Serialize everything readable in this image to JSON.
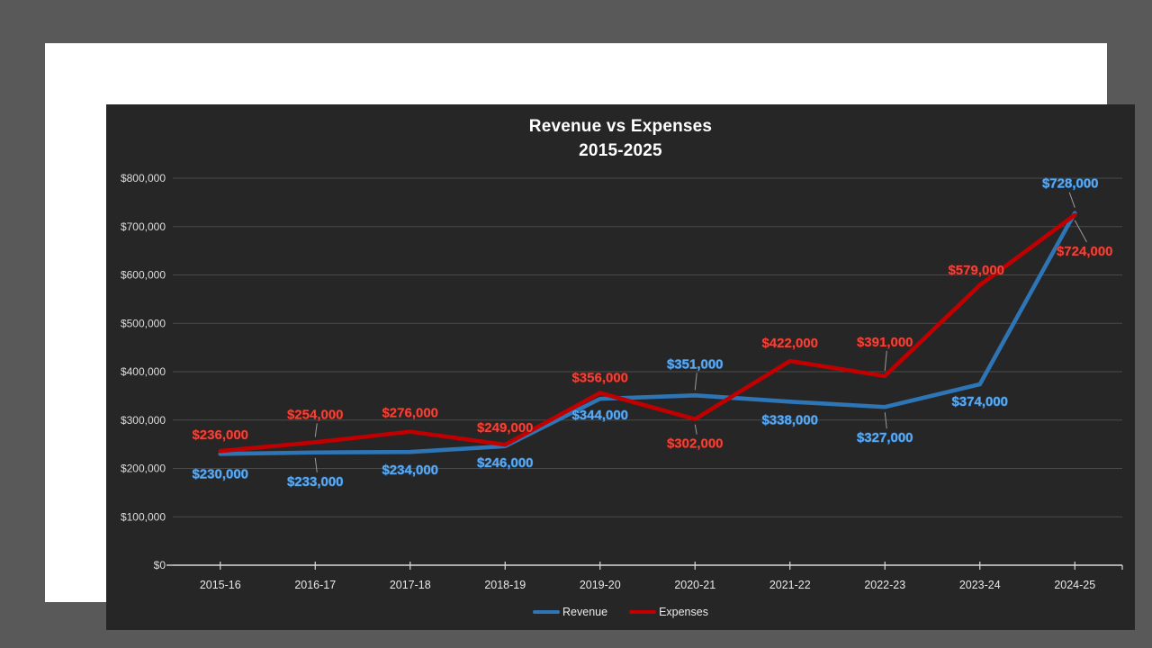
{
  "chart_data": {
    "type": "line",
    "title": "Revenue vs Expenses",
    "subtitle": "2015-2025",
    "categories": [
      "2015-16",
      "2016-17",
      "2017-18",
      "2018-19",
      "2019-20",
      "2020-21",
      "2021-22",
      "2022-23",
      "2023-24",
      "2024-25"
    ],
    "series": [
      {
        "name": "Revenue",
        "color": "#2E75B6",
        "label_fill": "#6FB0EE",
        "label_stroke": "#1b5globe"
      },
      {
        "name": "Expenses",
        "color": "#C00000"
      }
    ],
    "series_data": [
      {
        "name": "Revenue",
        "color": "#2E75B6",
        "label_fill": "#6FB0EE",
        "label_stroke": "#175randomness"
      }
    ],
    "revenue_values": [
      230000,
      233000,
      234000,
      246000,
      344000,
      351000,
      338000,
      327000,
      374000,
      728000
    ],
    "revenue_labels": [
      "$230,000",
      "$233,000",
      "$234,000",
      "$246,000",
      "$344,000",
      "$351,000",
      "$338,000",
      "$327,000",
      "$374,000",
      "$728,000"
    ],
    "expenses_values": [
      236000,
      254000,
      276000,
      249000,
      356000,
      302000,
      422000,
      391000,
      579000,
      724000
    ],
    "expenses_labels": [
      "$236,000",
      "$254,000",
      "$276,000",
      "$249,000",
      "$356,000",
      "$302,000",
      "$422,000",
      "$391,000",
      "$579,000",
      "$724,000"
    ],
    "y_tick_labels": [
      "$0",
      "$100,000",
      "$200,000",
      "$300,000",
      "$400,000",
      "$500,000",
      "$600,000",
      "$700,000",
      "$800,000"
    ],
    "y_tick_values": [
      0,
      100000,
      200000,
      300000,
      400000,
      500000,
      600000,
      700000,
      800000
    ],
    "ylim": [
      0,
      800000
    ],
    "grid": true,
    "legend_position": "bottom",
    "colors": {
      "revenue_line": "#2E75B6",
      "expenses_line": "#C00000",
      "revenue_label": "#5FA8EC",
      "expenses_label": "#E8473C",
      "chart_background": "#262626",
      "gridline": "#4a4a4a",
      "axis": "#D9D9D9",
      "leader_line": "#9a9a9a"
    }
  },
  "legend": {
    "revenue_label": "Revenue",
    "expenses_label": "Expenses"
  }
}
